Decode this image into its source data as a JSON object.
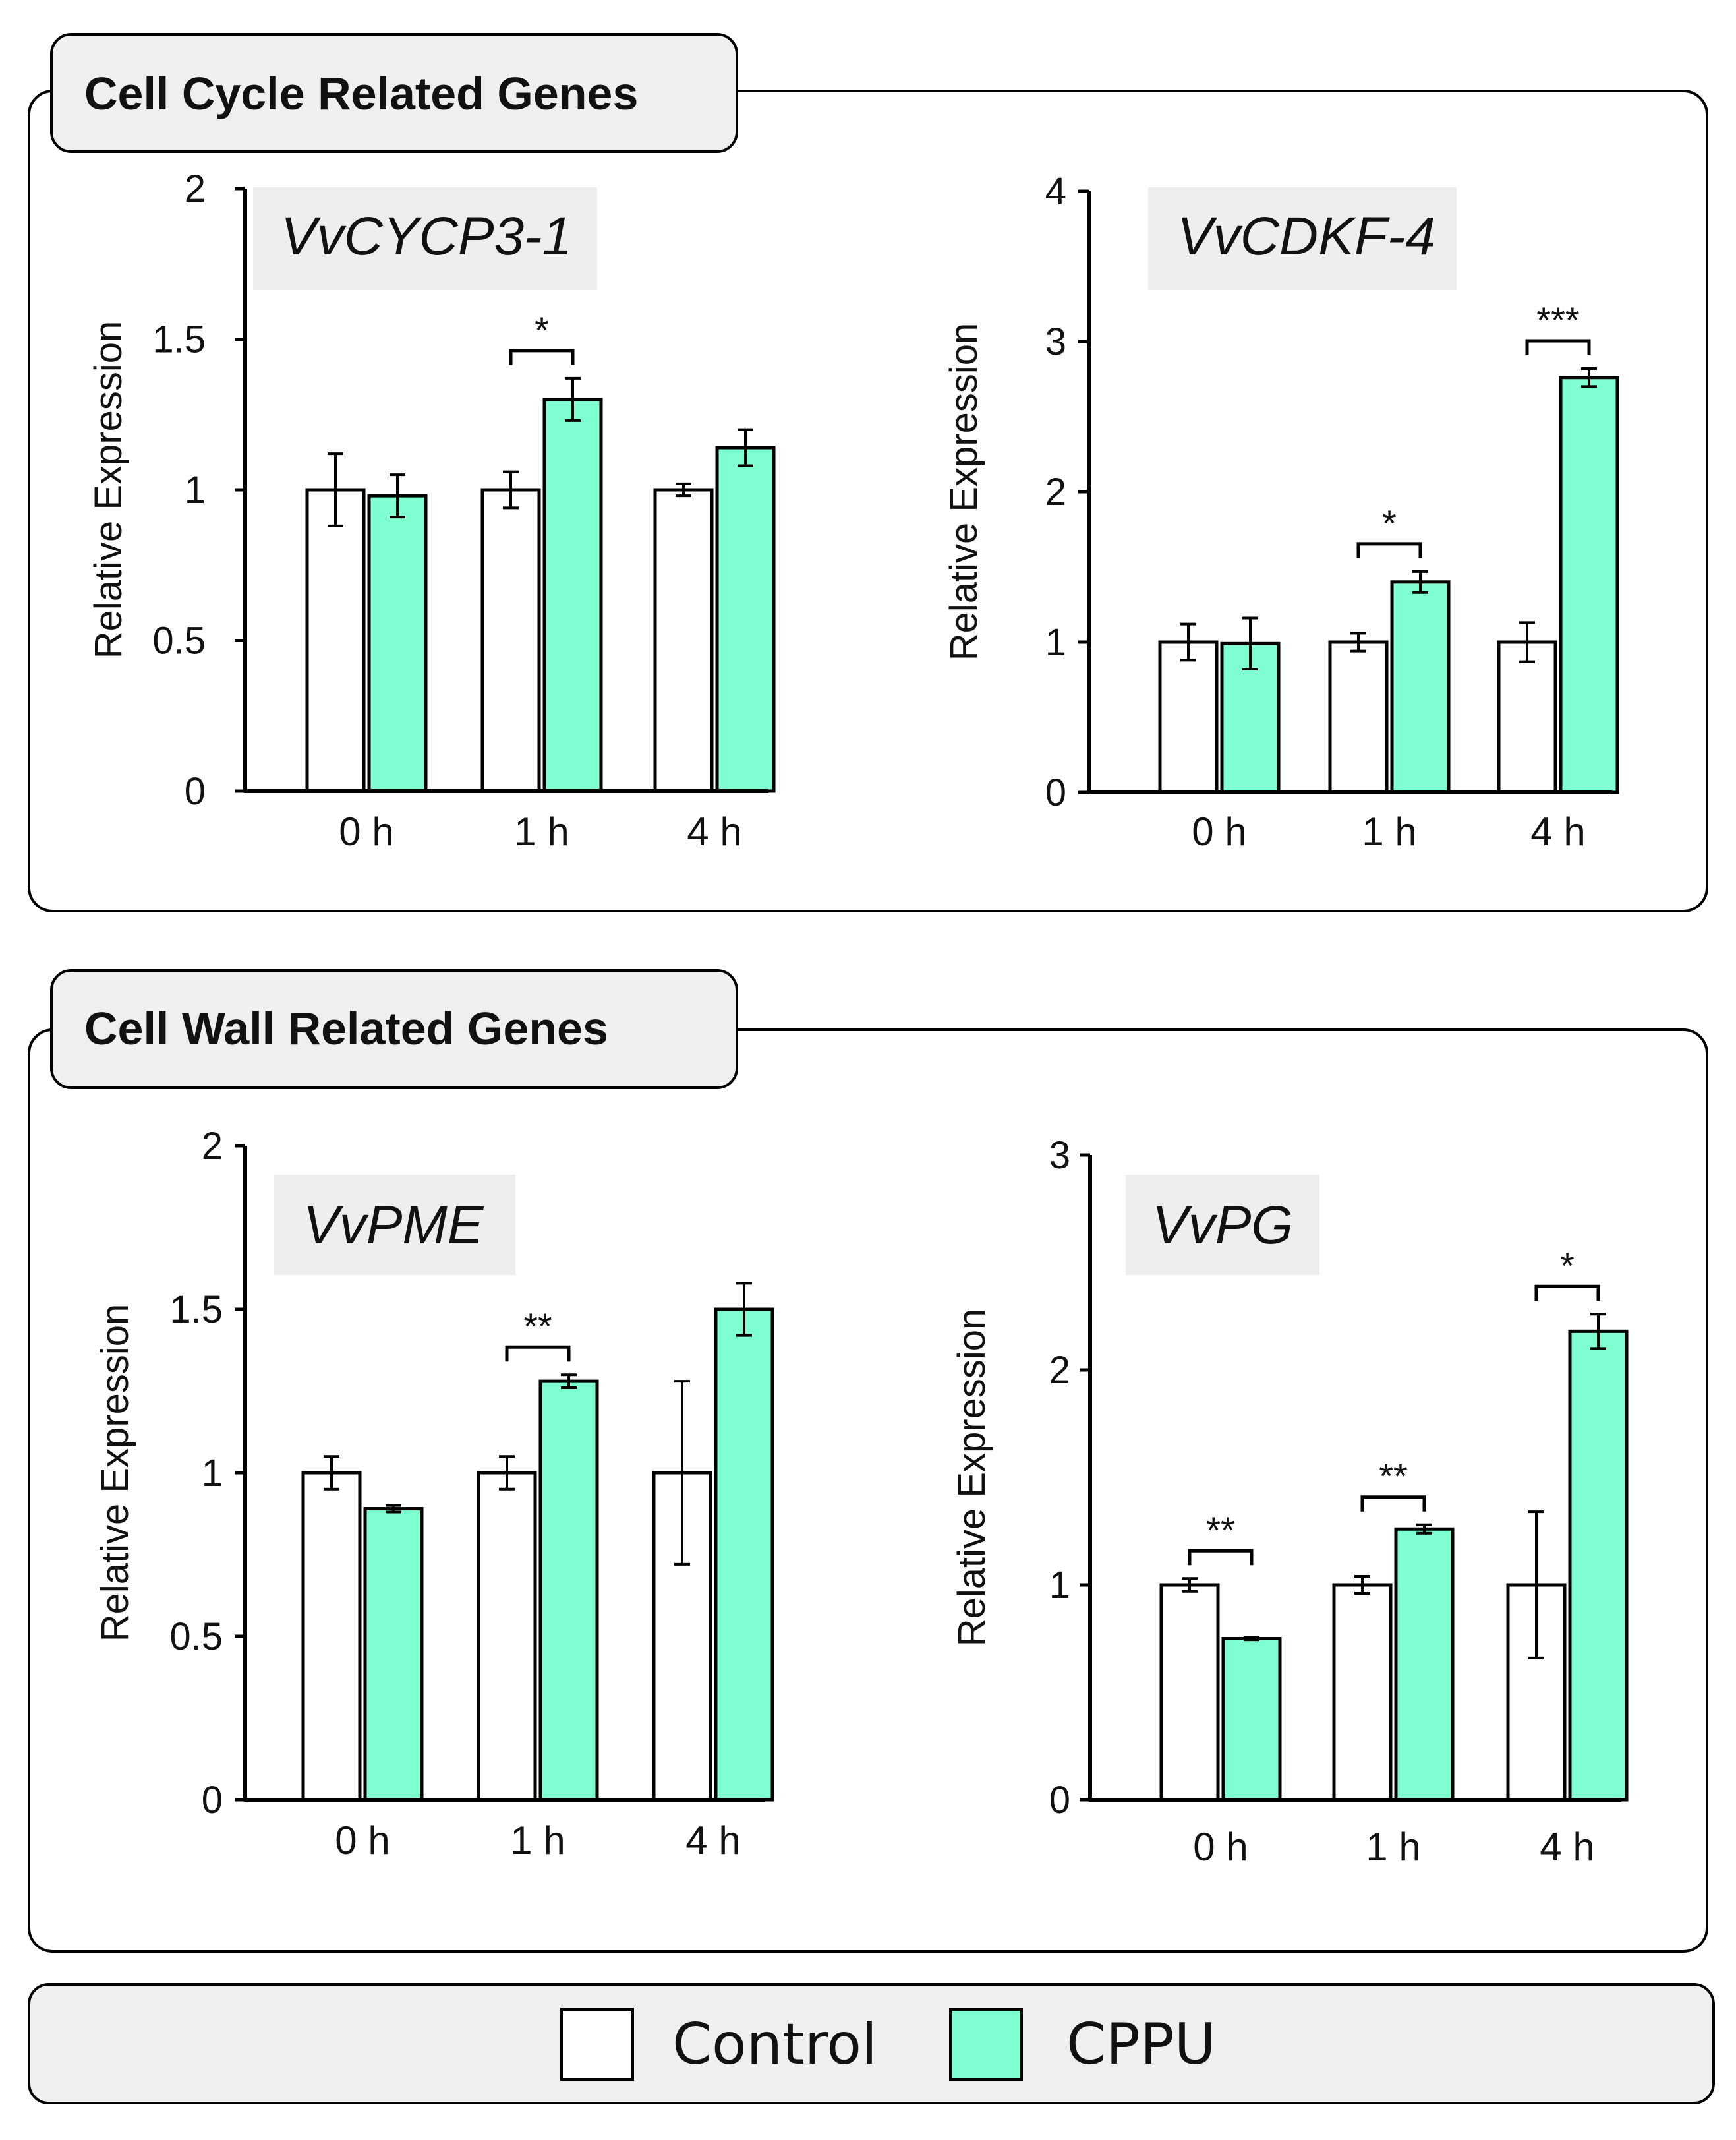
{
  "colors": {
    "control_fill": "#ffffff",
    "cppu_fill": "#7fffd1",
    "header_fill": "#efefef",
    "gene_label_fill": "#eeeeee",
    "stroke": "#000000"
  },
  "sections": {
    "cell_cycle": {
      "title": "Cell Cycle Related Genes"
    },
    "cell_wall": {
      "title": "Cell Wall Related Genes"
    }
  },
  "legend": {
    "items": [
      {
        "label": "Control",
        "color": "#ffffff"
      },
      {
        "label": "CPPU",
        "color": "#7fffd1"
      }
    ]
  },
  "chart_data": [
    {
      "type": "bar",
      "gene": "VvCYCP3-1",
      "ylabel": "Relative Expression",
      "ylim": [
        0,
        2
      ],
      "yticks": [
        "0",
        "0.5",
        "1",
        "1.5",
        "2"
      ],
      "categories": [
        "0 h",
        "1 h",
        "4 h"
      ],
      "series": [
        {
          "name": "Control",
          "values": [
            1.0,
            1.0,
            1.0
          ],
          "errors": [
            0.12,
            0.06,
            0.02
          ]
        },
        {
          "name": "CPPU",
          "values": [
            0.98,
            1.3,
            1.14
          ],
          "errors": [
            0.07,
            0.07,
            0.06
          ]
        }
      ],
      "significance": [
        {
          "category": "1 h",
          "label": "*"
        }
      ]
    },
    {
      "type": "bar",
      "gene": "VvCDKF-4",
      "ylabel": "Relative Expression",
      "ylim": [
        0,
        4
      ],
      "yticks": [
        "0",
        "1",
        "2",
        "3",
        "4"
      ],
      "categories": [
        "0 h",
        "1 h",
        "4 h"
      ],
      "series": [
        {
          "name": "Control",
          "values": [
            1.0,
            1.0,
            1.0
          ],
          "errors": [
            0.12,
            0.06,
            0.13
          ]
        },
        {
          "name": "CPPU",
          "values": [
            0.99,
            1.4,
            2.76
          ],
          "errors": [
            0.17,
            0.07,
            0.06
          ]
        }
      ],
      "significance": [
        {
          "category": "1 h",
          "label": "*"
        },
        {
          "category": "4 h",
          "label": "***"
        }
      ]
    },
    {
      "type": "bar",
      "gene": "VvPME",
      "ylabel": "Relative Expression",
      "ylim": [
        0,
        2
      ],
      "yticks": [
        "0",
        "0.5",
        "1",
        "1.5",
        "2"
      ],
      "categories": [
        "0 h",
        "1 h",
        "4 h"
      ],
      "series": [
        {
          "name": "Control",
          "values": [
            1.0,
            1.0,
            1.0
          ],
          "errors": [
            0.05,
            0.05,
            0.28
          ]
        },
        {
          "name": "CPPU",
          "values": [
            0.89,
            1.28,
            1.5
          ],
          "errors": [
            0.01,
            0.02,
            0.08
          ]
        }
      ],
      "significance": [
        {
          "category": "1 h",
          "label": "**"
        }
      ]
    },
    {
      "type": "bar",
      "gene": "VvPG",
      "ylabel": "Relative Expression",
      "ylim": [
        0,
        3
      ],
      "yticks": [
        "0",
        "1",
        "2",
        "3"
      ],
      "categories": [
        "0 h",
        "1 h",
        "4 h"
      ],
      "series": [
        {
          "name": "Control",
          "values": [
            1.0,
            1.0,
            1.0
          ],
          "errors": [
            0.03,
            0.04,
            0.34
          ]
        },
        {
          "name": "CPPU",
          "values": [
            0.75,
            1.26,
            2.18
          ],
          "errors": [
            0.005,
            0.02,
            0.08
          ]
        }
      ],
      "significance": [
        {
          "category": "0 h",
          "label": "**"
        },
        {
          "category": "1 h",
          "label": "**"
        },
        {
          "category": "4 h",
          "label": "*"
        }
      ]
    }
  ]
}
